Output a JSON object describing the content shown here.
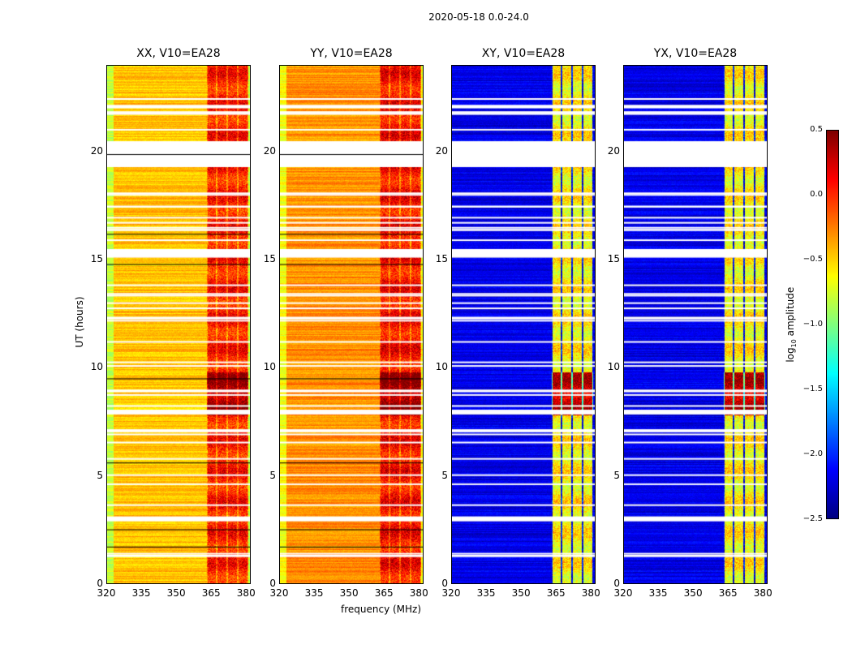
{
  "suptitle": "2020-05-18 0.0-24.0",
  "chart_data": {
    "type": "heatmap",
    "title": "2020-05-18 0.0-24.0",
    "xlabel": "frequency (MHz)",
    "ylabel": "UT (hours)",
    "xlim": [
      320,
      382
    ],
    "ylim": [
      0,
      24
    ],
    "xticks": [
      "320",
      "335",
      "350",
      "365",
      "380"
    ],
    "xtick_values": [
      320,
      335,
      350,
      365,
      380
    ],
    "yticks": [
      "0",
      "5",
      "10",
      "15",
      "20"
    ],
    "ytick_values": [
      0,
      5,
      10,
      15,
      20
    ],
    "colormap": "jet",
    "colorbar": {
      "label": "log10 amplitude",
      "range": [
        -2.5,
        0.5
      ],
      "ticks": [
        "0.5",
        "0.0",
        "−0.5",
        "−1.0",
        "−1.5",
        "−2.0",
        "−2.5"
      ],
      "tick_values": [
        0.5,
        0.0,
        -0.5,
        -1.0,
        -1.5,
        -2.0,
        -2.5
      ]
    },
    "panels": [
      {
        "title": "XX, V10=EA28",
        "kind": "parallel",
        "base_level": -0.45,
        "band_level": 0.05
      },
      {
        "title": "YY, V10=EA28",
        "kind": "parallel",
        "base_level": -0.3,
        "band_level": 0.1
      },
      {
        "title": "XY, V10=EA28",
        "kind": "cross",
        "base_level": -2.2,
        "band_level": -0.6
      },
      {
        "title": "YX, V10=EA28",
        "kind": "cross",
        "base_level": -2.2,
        "band_level": -0.6
      }
    ],
    "band_freq_range": [
      363,
      381
    ],
    "flagged_hours": [
      [
        19.3,
        20.5
      ],
      [
        15.1,
        15.5
      ],
      [
        2.9,
        3.1
      ]
    ],
    "strong_hours": [
      7.8,
      9.8
    ]
  }
}
